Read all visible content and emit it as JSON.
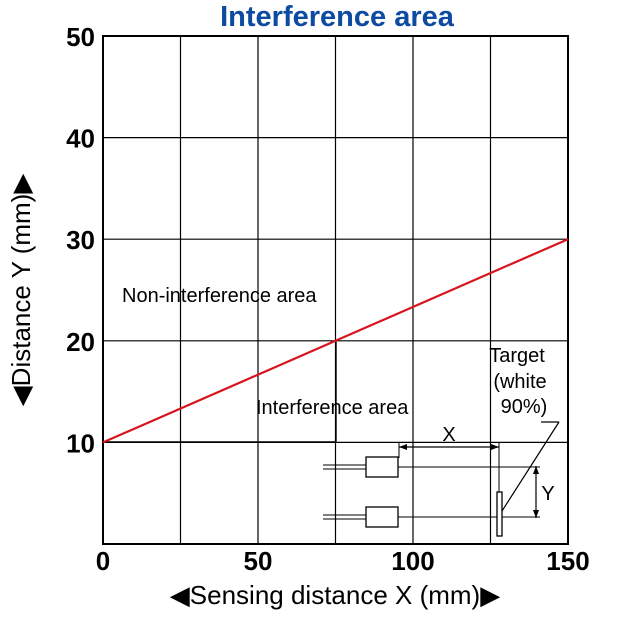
{
  "chart_data": {
    "type": "line",
    "title": "Interference area",
    "xlabel": "◀Sensing distance X (mm)▶",
    "ylabel": "◀Distance Y (mm)▶",
    "xlim": [
      0,
      150
    ],
    "ylim": [
      0,
      50
    ],
    "x_ticks": [
      0,
      50,
      100,
      150
    ],
    "y_ticks": [
      10,
      20,
      30,
      40,
      50
    ],
    "grid": true,
    "series": [
      {
        "x": [
          0,
          150
        ],
        "y": [
          10,
          30
        ],
        "color": "#d7141d"
      }
    ],
    "annotations": {
      "non_interference": "Non-interference area",
      "interference": "Interference area",
      "target_line1": "Target",
      "target_line2": "(white",
      "target_line3": "90%)",
      "inset_x": "X",
      "inset_y": "Y"
    }
  },
  "colors": {
    "title": "#0d4aa1",
    "line": "#d7141d",
    "axis": "#000000"
  }
}
